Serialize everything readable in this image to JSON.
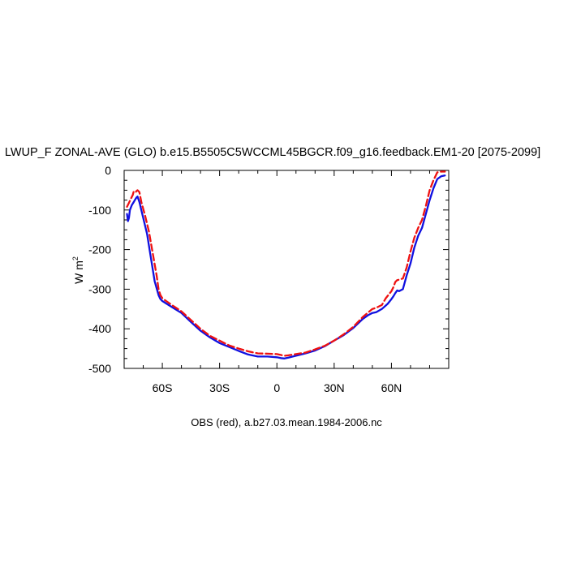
{
  "chart_data": {
    "type": "line",
    "title": "LWUP_F ZONAL-AVE (GLO) b.e15.B5505C5WCCML45BGCR.f09_g16.feedback.EM1-20 [2075-2099]",
    "ylabel": "W m",
    "ylabel_exp": "2",
    "caption": "OBS (red), a.b27.03.mean.1984-2006.nc",
    "xlim": [
      -80,
      90
    ],
    "ylim": [
      -500,
      0
    ],
    "xticks": [
      {
        "value": -60,
        "label": "60S"
      },
      {
        "value": -30,
        "label": "30S"
      },
      {
        "value": 0,
        "label": "0"
      },
      {
        "value": 30,
        "label": "30N"
      },
      {
        "value": 60,
        "label": "60N"
      }
    ],
    "yticks": [
      {
        "value": 0,
        "label": "0"
      },
      {
        "value": -100,
        "label": "-100"
      },
      {
        "value": -200,
        "label": "-200"
      },
      {
        "value": -300,
        "label": "-300"
      },
      {
        "value": -400,
        "label": "-400"
      },
      {
        "value": -500,
        "label": "-500"
      }
    ],
    "grid": false,
    "series": [
      {
        "name": "",
        "color": "#1010e0",
        "style": "solid",
        "x": [
          -78.5,
          -78,
          -77.5,
          -77,
          -76,
          -75,
          -74,
          -73.5,
          -73,
          -72,
          -70,
          -68,
          -66,
          -64,
          -62,
          -61,
          -60,
          -58,
          -55,
          -50,
          -45,
          -40,
          -35,
          -30,
          -25,
          -20,
          -15,
          -10,
          -5,
          0,
          2,
          4,
          6,
          10,
          15,
          20,
          25,
          30,
          35,
          40,
          45,
          48,
          50,
          52,
          55,
          58,
          60,
          61,
          62,
          63,
          64,
          66,
          68,
          70,
          72,
          74,
          76,
          78,
          80,
          82,
          84,
          86,
          88
        ],
        "y": [
          -110,
          -128,
          -120,
          -100,
          -88,
          -80,
          -72,
          -68,
          -66,
          -80,
          -120,
          -160,
          -220,
          -280,
          -315,
          -325,
          -330,
          -336,
          -345,
          -360,
          -383,
          -405,
          -422,
          -436,
          -446,
          -456,
          -465,
          -470,
          -470,
          -472,
          -474,
          -475,
          -473,
          -468,
          -462,
          -455,
          -444,
          -430,
          -416,
          -398,
          -375,
          -365,
          -360,
          -358,
          -350,
          -337,
          -325,
          -318,
          -310,
          -303,
          -305,
          -300,
          -265,
          -235,
          -195,
          -165,
          -145,
          -110,
          -75,
          -45,
          -22,
          -15,
          -13
        ]
      },
      {
        "name": "OBS",
        "color": "#ee1111",
        "style": "dashed",
        "x": [
          -78.5,
          -77.5,
          -76.5,
          -75.5,
          -75,
          -74,
          -73.5,
          -73,
          -72,
          -71,
          -69,
          -67,
          -65,
          -63,
          -62,
          -61,
          -60,
          -58,
          -55,
          -50,
          -45,
          -40,
          -35,
          -30,
          -25,
          -20,
          -15,
          -10,
          -5,
          0,
          2,
          4,
          6,
          10,
          15,
          20,
          25,
          30,
          35,
          40,
          45,
          48,
          50,
          52,
          55,
          57,
          60,
          61,
          62,
          63,
          64,
          66,
          68,
          70,
          72,
          74,
          76,
          78,
          80,
          82,
          84,
          86,
          88
        ],
        "y": [
          -92,
          -82,
          -72,
          -62,
          -53,
          -55,
          -52,
          -50,
          -55,
          -80,
          -115,
          -155,
          -210,
          -265,
          -300,
          -315,
          -323,
          -330,
          -340,
          -356,
          -378,
          -400,
          -418,
          -430,
          -442,
          -450,
          -457,
          -462,
          -463,
          -464,
          -466,
          -468,
          -467,
          -464,
          -460,
          -452,
          -443,
          -430,
          -414,
          -395,
          -370,
          -358,
          -350,
          -347,
          -340,
          -323,
          -305,
          -295,
          -282,
          -277,
          -276,
          -273,
          -245,
          -205,
          -170,
          -145,
          -125,
          -90,
          -50,
          -25,
          -5,
          -3,
          -3
        ]
      }
    ]
  }
}
